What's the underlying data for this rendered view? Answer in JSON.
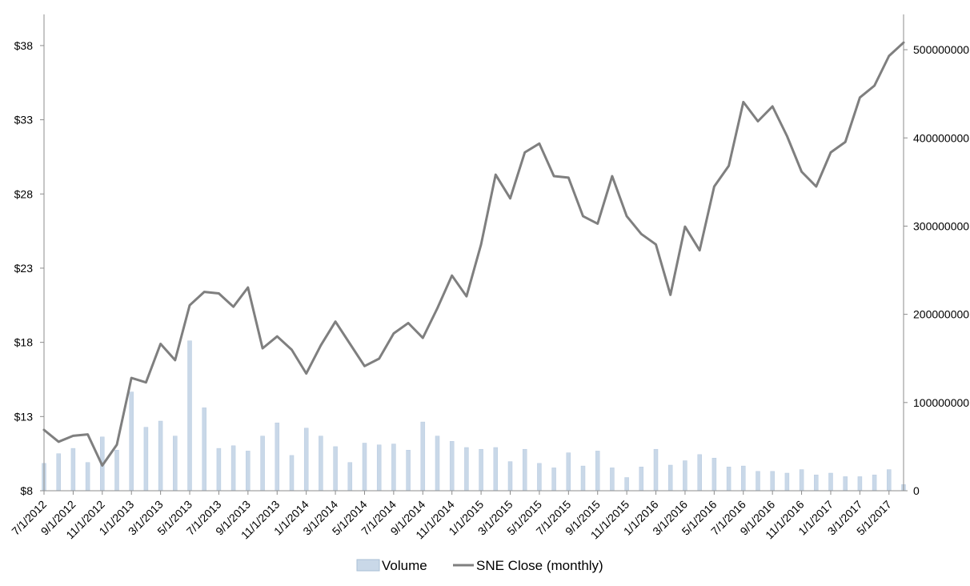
{
  "chart_data": {
    "type": "bar",
    "title": "",
    "xlabel": "",
    "ylabel": "",
    "y2label": "",
    "grid": false,
    "legend_position": "bottom",
    "x": [
      "7/1/2012",
      "8/1/2012",
      "9/1/2012",
      "10/1/2012",
      "11/1/2012",
      "12/1/2012",
      "1/1/2013",
      "2/1/2013",
      "3/1/2013",
      "4/1/2013",
      "5/1/2013",
      "6/1/2013",
      "7/1/2013",
      "8/1/2013",
      "9/1/2013",
      "10/1/2013",
      "11/1/2013",
      "12/1/2013",
      "1/1/2014",
      "2/1/2014",
      "3/1/2014",
      "4/1/2014",
      "5/1/2014",
      "6/1/2014",
      "7/1/2014",
      "8/1/2014",
      "9/1/2014",
      "10/1/2014",
      "11/1/2014",
      "12/1/2014",
      "1/1/2015",
      "2/1/2015",
      "3/1/2015",
      "4/1/2015",
      "5/1/2015",
      "6/1/2015",
      "7/1/2015",
      "8/1/2015",
      "9/1/2015",
      "10/1/2015",
      "11/1/2015",
      "12/1/2015",
      "1/1/2016",
      "2/1/2016",
      "3/1/2016",
      "4/1/2016",
      "5/1/2016",
      "6/1/2016",
      "7/1/2016",
      "8/1/2016",
      "9/1/2016",
      "10/1/2016",
      "11/1/2016",
      "12/1/2016",
      "1/1/2017",
      "2/1/2017",
      "3/1/2017",
      "4/1/2017",
      "5/1/2017",
      "6/1/2017"
    ],
    "tick_labels": [
      "7/1/2012",
      "9/1/2012",
      "11/1/2012",
      "1/1/2013",
      "3/1/2013",
      "5/1/2013",
      "7/1/2013",
      "9/1/2013",
      "11/1/2013",
      "1/1/2014",
      "3/1/2014",
      "5/1/2014",
      "7/1/2014",
      "9/1/2014",
      "11/1/2014",
      "1/1/2015",
      "3/1/2015",
      "5/1/2015",
      "7/1/2015",
      "9/1/2015",
      "11/1/2015",
      "1/1/2016",
      "3/1/2016",
      "5/1/2016",
      "7/1/2016",
      "9/1/2016",
      "11/1/2016",
      "1/1/2017",
      "3/1/2017",
      "5/1/2017"
    ],
    "series": [
      {
        "name": "Volume",
        "kind": "bar",
        "axis": "right",
        "color": "#c9d8e8",
        "values": [
          31000000,
          42000000,
          48000000,
          32000000,
          61000000,
          46000000,
          112000000,
          72000000,
          79000000,
          62000000,
          170000000,
          94000000,
          48000000,
          51000000,
          45000000,
          62000000,
          77000000,
          40000000,
          71000000,
          62000000,
          50000000,
          32000000,
          54000000,
          52000000,
          53000000,
          46000000,
          78000000,
          62000000,
          56000000,
          49000000,
          47000000,
          49000000,
          33000000,
          47000000,
          31000000,
          26000000,
          43000000,
          28000000,
          45000000,
          26000000,
          15000000,
          27000000,
          47000000,
          29000000,
          34000000,
          41000000,
          37000000,
          27000000,
          28000000,
          22000000,
          22000000,
          20000000,
          24000000,
          18000000,
          20000000,
          16000000,
          16000000,
          18000000,
          24000000,
          7000000
        ]
      },
      {
        "name": "SNE Close (monthly)",
        "kind": "line",
        "axis": "left",
        "color": "#7f7f7f",
        "values": [
          12.1,
          11.3,
          11.7,
          11.8,
          9.7,
          11.1,
          15.6,
          15.3,
          17.9,
          16.8,
          20.5,
          21.4,
          21.3,
          20.4,
          21.7,
          17.6,
          18.4,
          17.5,
          15.9,
          17.8,
          19.4,
          17.9,
          16.4,
          16.9,
          18.6,
          19.3,
          18.3,
          20.3,
          22.5,
          21.1,
          24.6,
          29.3,
          27.7,
          30.8,
          31.4,
          29.2,
          29.1,
          26.5,
          26.0,
          29.2,
          26.5,
          25.3,
          24.6,
          21.2,
          25.8,
          24.2,
          28.5,
          29.9,
          34.2,
          32.9,
          33.9,
          31.9,
          29.5,
          28.5,
          30.8,
          31.5,
          34.5,
          35.3,
          37.3,
          38.2
        ]
      }
    ],
    "y_left": {
      "min": 8,
      "max": 40.1,
      "ticks": [
        8,
        13,
        18,
        23,
        28,
        33,
        38
      ],
      "tick_labels": [
        "$8",
        "$13",
        "$18",
        "$23",
        "$28",
        "$33",
        "$38"
      ]
    },
    "y_right": {
      "min": 0,
      "max": 540000000,
      "ticks": [
        0,
        100000000,
        200000000,
        300000000,
        400000000,
        500000000
      ],
      "tick_labels": [
        "0",
        "100000000",
        "200000000",
        "300000000",
        "400000000",
        "500000000"
      ]
    },
    "legend": [
      {
        "label": "Volume",
        "symbol": "bar",
        "color": "#c9d8e8"
      },
      {
        "label": "SNE Close (monthly)",
        "symbol": "line",
        "color": "#7f7f7f"
      }
    ]
  }
}
